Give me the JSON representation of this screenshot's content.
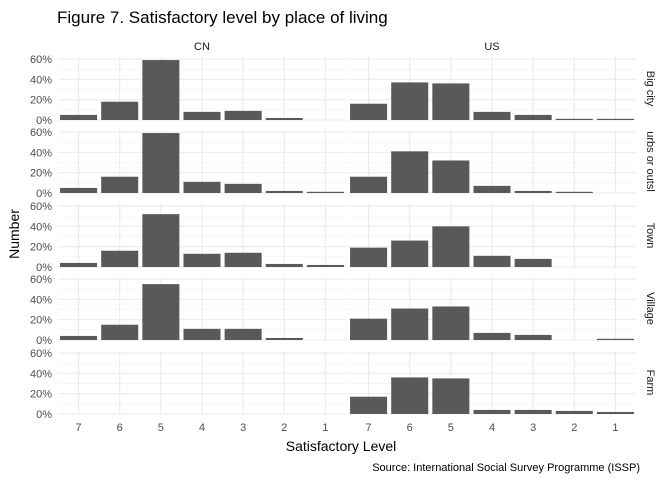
{
  "title": "Figure 7. Satisfactory level by place of living",
  "caption": "Source: International Social Survey Programme (ISSP)",
  "chart_data": {
    "type": "bar",
    "xlabel": "Satisfactory Level",
    "ylabel": "Number",
    "categories": [
      "7",
      "6",
      "5",
      "4",
      "3",
      "2",
      "1"
    ],
    "ylim": [
      0,
      0.62
    ],
    "yticks": [
      "0%",
      "20%",
      "40%",
      "60%"
    ],
    "grid": true,
    "col_facets": [
      "CN",
      "US"
    ],
    "row_facets": [
      "Big city",
      "urbs or outsl",
      "Town",
      "Village",
      "Farm"
    ],
    "bar_color": "#595959",
    "panels": [
      {
        "col": "CN",
        "row": "Big city",
        "values": [
          0.05,
          0.18,
          0.59,
          0.08,
          0.09,
          0.02,
          0
        ]
      },
      {
        "col": "US",
        "row": "Big city",
        "values": [
          0.16,
          0.37,
          0.36,
          0.08,
          0.05,
          0.01,
          0.01
        ]
      },
      {
        "col": "CN",
        "row": "urbs or outsl",
        "values": [
          0.05,
          0.16,
          0.59,
          0.11,
          0.09,
          0.02,
          0.01
        ]
      },
      {
        "col": "US",
        "row": "urbs or outsl",
        "values": [
          0.16,
          0.41,
          0.32,
          0.07,
          0.02,
          0.01,
          0
        ]
      },
      {
        "col": "CN",
        "row": "Town",
        "values": [
          0.04,
          0.16,
          0.52,
          0.13,
          0.14,
          0.03,
          0.02
        ]
      },
      {
        "col": "US",
        "row": "Town",
        "values": [
          0.19,
          0.26,
          0.4,
          0.11,
          0.08,
          0,
          0
        ]
      },
      {
        "col": "CN",
        "row": "Village",
        "values": [
          0.04,
          0.15,
          0.55,
          0.11,
          0.11,
          0.02,
          0
        ]
      },
      {
        "col": "US",
        "row": "Village",
        "values": [
          0.21,
          0.31,
          0.33,
          0.07,
          0.05,
          0,
          0.01
        ]
      },
      {
        "col": "CN",
        "row": "Farm",
        "values": [
          0,
          0,
          0,
          0,
          0,
          0,
          0
        ]
      },
      {
        "col": "US",
        "row": "Farm",
        "values": [
          0.17,
          0.36,
          0.35,
          0.04,
          0.04,
          0.03,
          0.02
        ]
      }
    ]
  }
}
